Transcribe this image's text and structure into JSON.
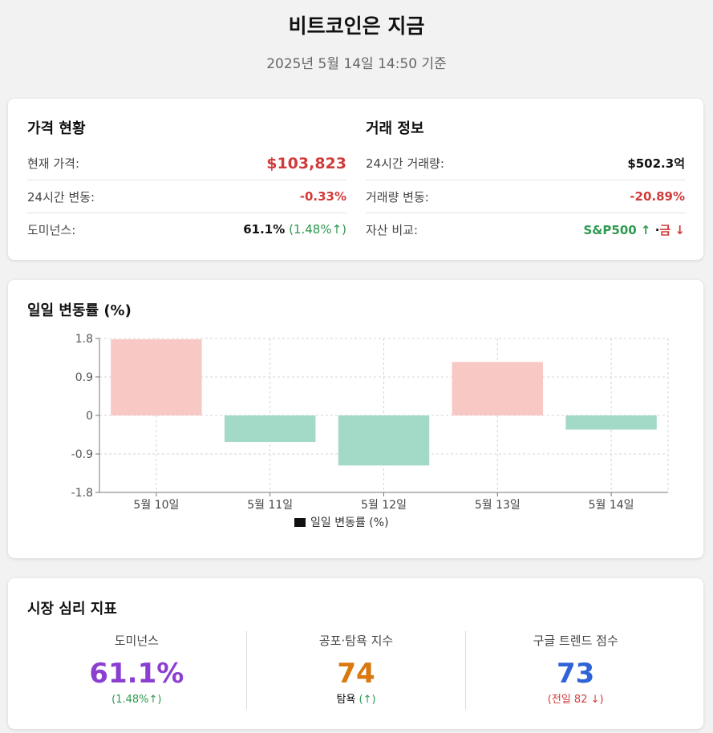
{
  "header": {
    "title": "비트코인은 지금",
    "subtitle": "2025년 5월 14일 14:50 기준"
  },
  "price": {
    "title": "가격 현황",
    "rows": [
      {
        "label": "현재 가격:",
        "value": "$103,823"
      },
      {
        "label": "24시간 변동:",
        "value": "-0.33%"
      },
      {
        "label": "도미넌스:",
        "value": "61.1%",
        "extra": "(1.48%↑)"
      }
    ]
  },
  "trade": {
    "title": "거래 정보",
    "rows": [
      {
        "label": "24시간 거래량:",
        "value": "$502.3억"
      },
      {
        "label": "거래량 변동:",
        "value": "-20.89%"
      },
      {
        "label": "자산 비교:",
        "value_up": "S&P500 ↑",
        "sep": " ·",
        "value_down": "금 ↓"
      }
    ]
  },
  "chart": {
    "title": "일일 변동률 (%)",
    "chart_data": {
      "type": "bar",
      "categories": [
        "5월 10일",
        "5월 11일",
        "5월 12일",
        "5월 13일",
        "5월 14일"
      ],
      "series": [
        {
          "name": "일일 변동률 (%)",
          "values": [
            1.78,
            -0.62,
            -1.17,
            1.25,
            -0.33
          ]
        }
      ],
      "ylim": [
        -1.8,
        1.8
      ],
      "yticks": [
        "1.8",
        "0.9",
        "0",
        "-0.9",
        "-1.8"
      ],
      "legend": "bottom",
      "grid": true,
      "colors": {
        "positive": "#f8c8c4",
        "negative": "#a3d9c7",
        "legend": "#111111"
      }
    }
  },
  "sentiment": {
    "title": "시장 심리 지표",
    "metrics": [
      {
        "label": "도미넌스",
        "value": "61.1%",
        "sub": "(1.48%↑)",
        "color": "#8a3fd1",
        "sub_color": "#2e9a4f"
      },
      {
        "label": "공포·탐욕 지수",
        "value": "74",
        "sub_prefix": "탐욕 ",
        "sub": "(↑)",
        "color": "#d9780f",
        "sub_color": "#2e9a4f"
      },
      {
        "label": "구글 트렌드 점수",
        "value": "73",
        "sub": "(전일 82 ↓)",
        "color": "#2f63d8",
        "sub_color": "#d23a3a"
      }
    ]
  }
}
